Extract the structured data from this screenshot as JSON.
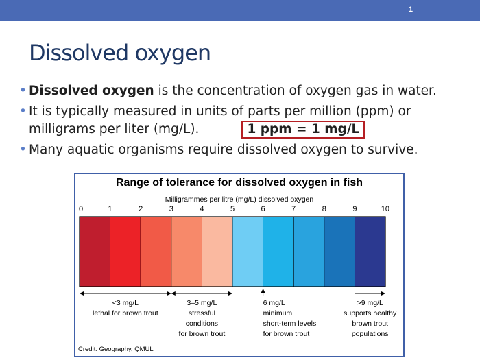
{
  "slide": {
    "page_number": "1",
    "title": "Dissolved oxygen",
    "bullets": [
      {
        "bold": "Dissolved oxygen",
        "text": " is the concentration of oxygen gas in water."
      },
      {
        "text": "It is typically measured in units of parts per million (ppm) or milligrams per liter (mg/L).",
        "highlight": "1 ppm = 1 mg/L"
      },
      {
        "text": "Many aquatic organisms require dissolved oxygen to survive."
      }
    ]
  },
  "figure": {
    "title": "Range of tolerance for dissolved oxygen in fish",
    "axis_label": "Milligrammes per litre (mg/L) dissolved oxygen",
    "credit": "Credit: Geography, QMUL",
    "scale": {
      "min": 0,
      "max": 10,
      "ticks": [
        "0",
        "1",
        "2",
        "3",
        "4",
        "5",
        "6",
        "7",
        "8",
        "9",
        "10"
      ]
    },
    "segment_colors": [
      "#bf1e2e",
      "#ec2227",
      "#f15a47",
      "#f7896a",
      "#fab9a0",
      "#6fcdf4",
      "#1fb2e8",
      "#29a3de",
      "#1a73b9",
      "#2b3990"
    ],
    "annotations": [
      {
        "lines": [
          "<3 mg/L",
          "lethal for brown trout"
        ]
      },
      {
        "lines": [
          "3–5 mg/L",
          "stressful",
          "conditions",
          "for brown trout"
        ]
      },
      {
        "lines": [
          "6 mg/L",
          "minimum",
          "short-term levels",
          "for brown trout"
        ]
      },
      {
        "lines": [
          ">9 mg/L",
          "supports healthy",
          "brown trout",
          "populations"
        ]
      }
    ]
  },
  "colors": {
    "header_bar": "#4a6ab5",
    "title": "#1f3864",
    "bullet": "#5b7ec8",
    "highlight_border": "#b51f24",
    "figure_border": "#4060a8"
  }
}
